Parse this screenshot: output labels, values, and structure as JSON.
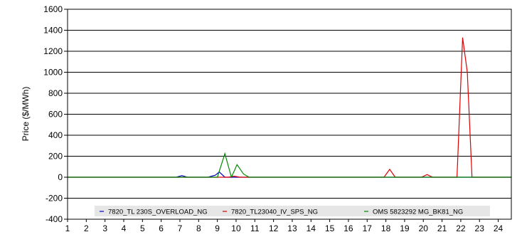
{
  "chart_data": {
    "type": "line",
    "ylabel": "Price ($/MWh)",
    "xlabel": "",
    "ylim": [
      -400,
      1600
    ],
    "y_ticks": [
      -400,
      -200,
      0,
      200,
      400,
      600,
      800,
      1000,
      1200,
      1400,
      1600
    ],
    "xlim": [
      1,
      24.7
    ],
    "x_ticks": [
      1,
      2,
      3,
      4,
      5,
      6,
      7,
      8,
      9,
      10,
      11,
      12,
      13,
      14,
      15,
      16,
      17,
      18,
      19,
      20,
      21,
      22,
      23,
      24
    ],
    "grid": "horizontal",
    "legend": "bottom",
    "series": [
      {
        "name": "7820_TL 230S_OVERLOAD_NG",
        "color": "#0000cc",
        "x": [
          1,
          6.8,
          7.1,
          7.4,
          8.5,
          8.9,
          9.1,
          9.4,
          24.7
        ],
        "y": [
          0,
          0,
          15,
          0,
          0,
          20,
          50,
          0,
          0
        ]
      },
      {
        "name": "7820_TL23040_IV_SPS_NG",
        "color": "#dd0000",
        "x": [
          1,
          9.6,
          9.9,
          10.2,
          17.9,
          18.2,
          18.5,
          19.9,
          20.2,
          20.5,
          21.8,
          22.1,
          22.35,
          22.6,
          24.7
        ],
        "y": [
          0,
          0,
          10,
          0,
          0,
          75,
          0,
          0,
          25,
          0,
          0,
          1330,
          1000,
          0,
          0
        ]
      },
      {
        "name": "OMS 5823292 MG_BK81_NG",
        "color": "#008800",
        "x": [
          1,
          9.0,
          9.4,
          9.75,
          10.05,
          10.4,
          10.7,
          24.7
        ],
        "y": [
          0,
          0,
          225,
          0,
          120,
          30,
          0,
          0
        ]
      }
    ]
  }
}
